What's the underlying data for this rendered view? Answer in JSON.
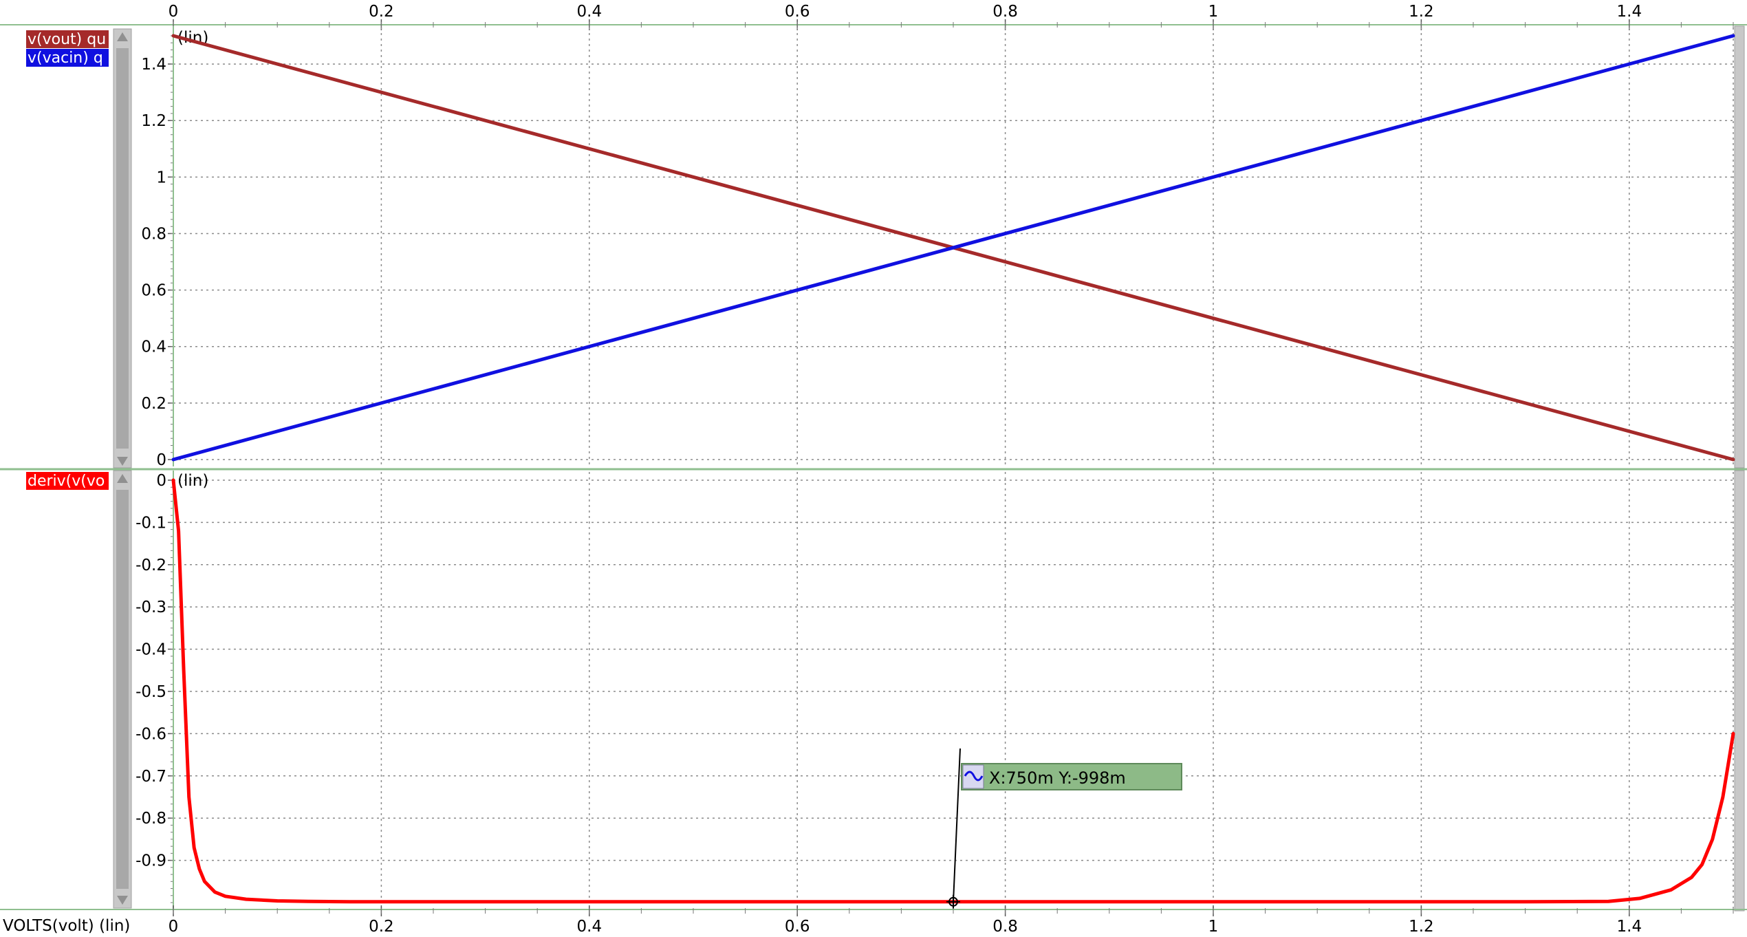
{
  "x_axis_label": "VOLTS(volt) (lin)",
  "colors": {
    "vout": "#a52a2a",
    "vacin": "#1010e0",
    "deriv": "#ff0000",
    "grid": "#8a8a8a",
    "frame": "#8fbf8f",
    "cursor_box": "#8dba87"
  },
  "cursor": {
    "label": "X:750m Y:-998m",
    "icon": "waveform-icon",
    "x": 0.75,
    "y": -0.998
  },
  "chart_data": [
    {
      "type": "line",
      "scale_label": "(lin)",
      "xlim": [
        0,
        1.5
      ],
      "ylim": [
        0,
        1.5
      ],
      "xticks": [
        "0",
        "0.2",
        "0.4",
        "0.6",
        "0.8",
        "1",
        "1.2",
        "1.4"
      ],
      "yticks": [
        "0",
        "0.2",
        "0.4",
        "0.6",
        "0.8",
        "1",
        "1.2",
        "1.4"
      ],
      "series": [
        {
          "name": "v(vout) qu",
          "color": "#a52a2a",
          "x": [
            0,
            1.5
          ],
          "y": [
            1.5,
            0
          ]
        },
        {
          "name": "v(vacin) q",
          "color": "#1010e0",
          "x": [
            0,
            1.5
          ],
          "y": [
            0,
            1.5
          ]
        }
      ]
    },
    {
      "type": "line",
      "scale_label": "(lin)",
      "xlim": [
        0,
        1.5
      ],
      "ylim": [
        -1.0,
        0
      ],
      "xticks": [
        "0",
        "0.2",
        "0.4",
        "0.6",
        "0.8",
        "1",
        "1.2",
        "1.4"
      ],
      "yticks": [
        "0",
        "-0.1",
        "-0.2",
        "-0.3",
        "-0.4",
        "-0.5",
        "-0.6",
        "-0.7",
        "-0.8",
        "-0.9"
      ],
      "series": [
        {
          "name": "deriv(v(vo",
          "color": "#ff0000",
          "x": [
            0,
            0.005,
            0.01,
            0.015,
            0.02,
            0.025,
            0.03,
            0.04,
            0.05,
            0.07,
            0.1,
            0.13,
            0.17,
            0.2,
            0.5,
            1.0,
            1.3,
            1.38,
            1.41,
            1.44,
            1.46,
            1.47,
            1.48,
            1.49,
            1.5
          ],
          "y": [
            0,
            -0.12,
            -0.45,
            -0.75,
            -0.87,
            -0.92,
            -0.95,
            -0.975,
            -0.985,
            -0.992,
            -0.996,
            -0.997,
            -0.998,
            -0.998,
            -0.998,
            -0.998,
            -0.998,
            -0.997,
            -0.99,
            -0.97,
            -0.94,
            -0.91,
            -0.85,
            -0.75,
            -0.6
          ]
        }
      ]
    }
  ]
}
